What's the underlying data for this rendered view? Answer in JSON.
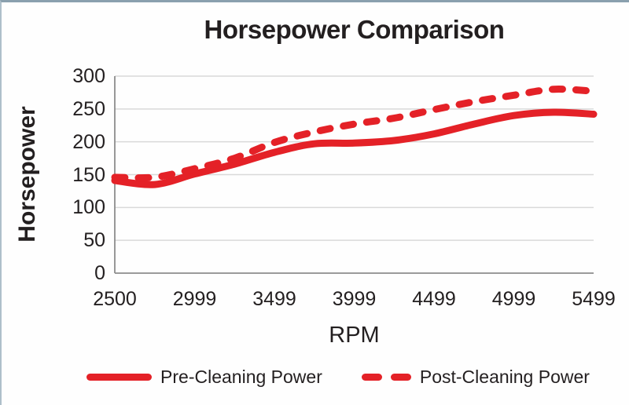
{
  "chart_data": {
    "type": "line",
    "title": "Horsepower Comparison",
    "xlabel": "RPM",
    "ylabel": "Horsepower",
    "x": [
      2500,
      2749,
      2999,
      3249,
      3499,
      3749,
      3999,
      4249,
      4499,
      4749,
      4999,
      5249,
      5499
    ],
    "x_tick_labels": [
      "2500",
      "2999",
      "3499",
      "3999",
      "4499",
      "4999",
      "5499"
    ],
    "y_tick_labels": [
      "300",
      "250",
      "200",
      "150",
      "100",
      "50",
      "0"
    ],
    "y_ticks": [
      300,
      250,
      200,
      150,
      100,
      50,
      0
    ],
    "ylim": [
      0,
      300
    ],
    "grid": "horizontal",
    "legend_position": "bottom",
    "series": [
      {
        "name": "Pre-Cleaning Power",
        "style": "solid",
        "color": "#e42127",
        "values": [
          141,
          135,
          151,
          166,
          184,
          197,
          198,
          202,
          212,
          227,
          240,
          245,
          242
        ]
      },
      {
        "name": "Post-Cleaning Power",
        "style": "dashed",
        "color": "#e42127",
        "values": [
          146,
          146,
          159,
          175,
          199,
          215,
          227,
          236,
          249,
          261,
          271,
          280,
          277
        ]
      }
    ],
    "colors": {
      "line_red": "#e42127",
      "gridline": "#d9d9d9",
      "axis_line": "#8c8c8c",
      "text": "#231f20",
      "frame_top": "#8aa0ae",
      "frame_left": "#aebfca",
      "background": "#fefefe"
    }
  }
}
